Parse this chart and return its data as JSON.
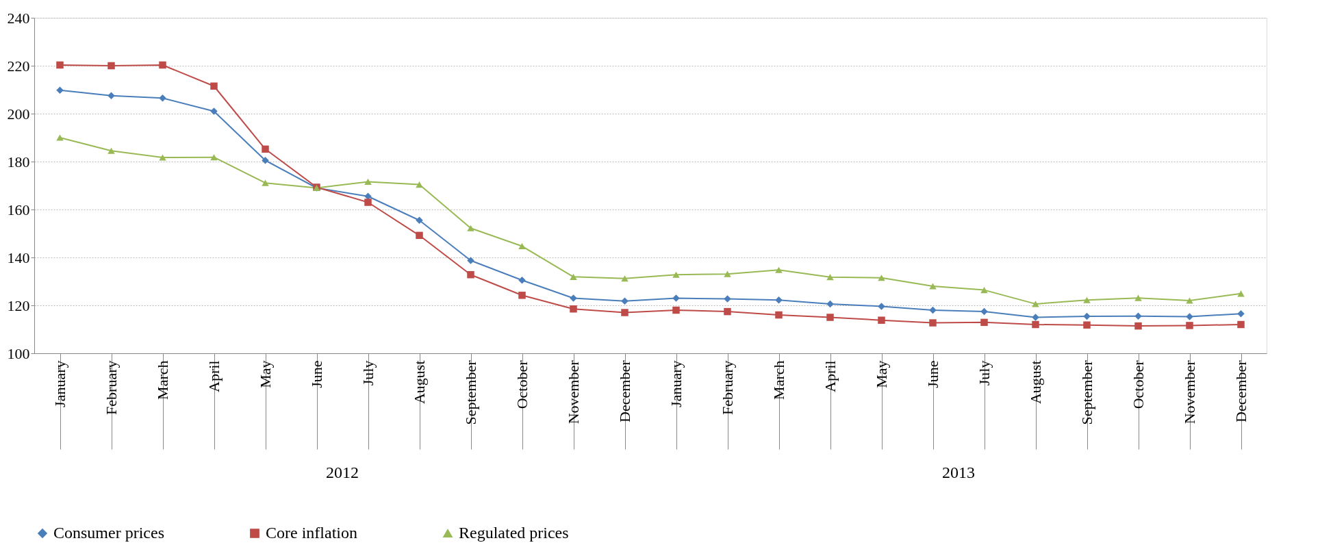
{
  "chart_data": {
    "type": "line",
    "categories": [
      "January",
      "February",
      "March",
      "April",
      "May",
      "June",
      "July",
      "August",
      "September",
      "October",
      "November",
      "December",
      "January",
      "February",
      "March",
      "April",
      "May",
      "June",
      "July",
      "August",
      "September",
      "October",
      "November",
      "December"
    ],
    "series": [
      {
        "name": "Consumer prices",
        "color": "#4a7ebb",
        "marker": "diamond",
        "values": [
          209.8,
          207.5,
          206.5,
          201,
          180.5,
          169,
          165.5,
          155.5,
          138.7,
          130.5,
          123,
          121.8,
          123,
          122.7,
          122.2,
          120.6,
          119.6,
          118,
          117.4,
          115,
          115.4,
          115.5,
          115.3,
          116.5
        ]
      },
      {
        "name": "Core inflation",
        "color": "#be4b48",
        "marker": "square",
        "values": [
          220.3,
          220,
          220.3,
          211.5,
          185.2,
          169.3,
          163,
          149.2,
          132.8,
          124.2,
          118.5,
          117,
          118,
          117.4,
          116,
          115,
          113.8,
          112.7,
          112.9,
          112,
          111.8,
          111.4,
          111.6,
          112
        ]
      },
      {
        "name": "Regulated prices",
        "color": "#98b954",
        "marker": "triangle",
        "values": [
          190,
          184.5,
          181.7,
          181.8,
          171.1,
          169,
          171.6,
          170.4,
          152.2,
          144.7,
          131.9,
          131.2,
          132.8,
          133.1,
          134.8,
          131.8,
          131.5,
          128,
          126.4,
          120.6,
          122.2,
          123.1,
          122,
          124.9
        ]
      }
    ],
    "ylim": [
      100,
      240
    ],
    "yticks": [
      100,
      120,
      140,
      160,
      180,
      200,
      220,
      240
    ],
    "grid": "y",
    "legend": "bottom",
    "line_style": "solid",
    "annotations": [
      "2012",
      "2013"
    ]
  }
}
